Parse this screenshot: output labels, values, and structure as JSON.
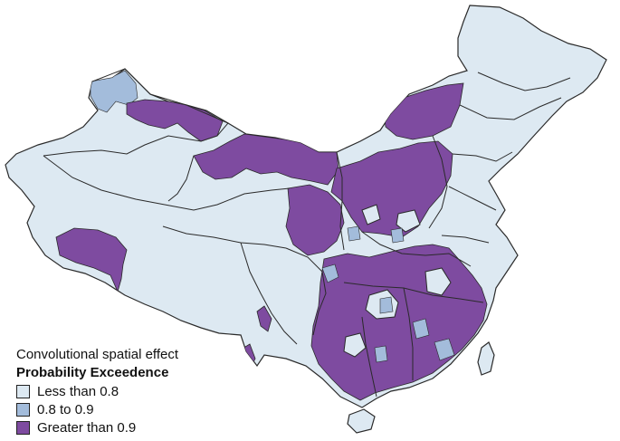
{
  "map": {
    "colors": {
      "less_than_0_8": "#dde9f2",
      "between_0_8_0_9": "#a3bcdb",
      "greater_than_0_9": "#7e4ba0",
      "boundary": "#2a2a2a"
    }
  },
  "legend": {
    "subtitle": "Convolutional spatial effect",
    "title": "Probability Exceedence",
    "items": [
      {
        "label": "Less than 0.8",
        "color": "#dde9f2"
      },
      {
        "label": "0.8 to 0.9",
        "color": "#a3bcdb"
      },
      {
        "label": "Greater than 0.9",
        "color": "#7e4ba0"
      }
    ]
  }
}
